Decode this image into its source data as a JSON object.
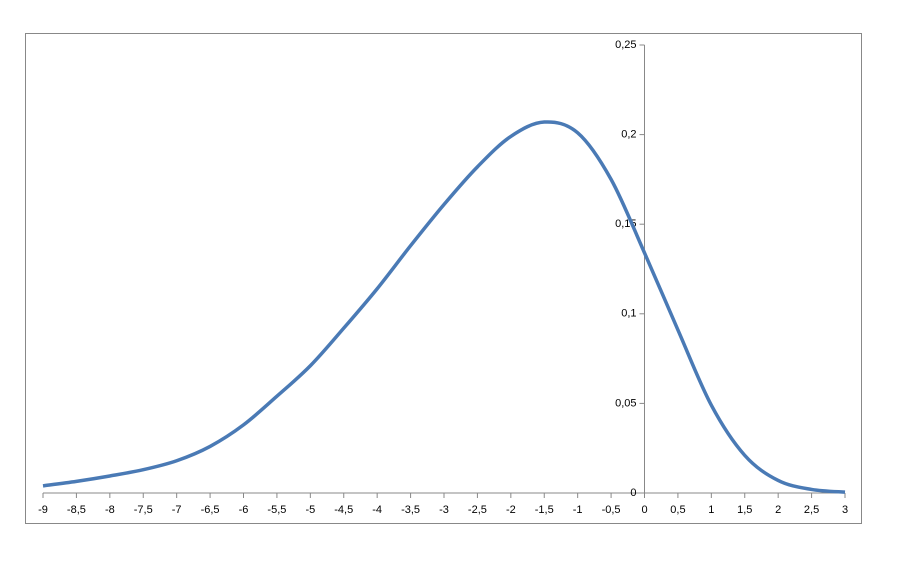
{
  "chart_data": {
    "type": "line",
    "x": [
      -9,
      -8.5,
      -8,
      -7.5,
      -7,
      -6.5,
      -6,
      -5.5,
      -5,
      -4.5,
      -4,
      -3.5,
      -3,
      -2.5,
      -2,
      -1.5,
      -1,
      -0.5,
      0,
      0.5,
      1,
      1.5,
      2,
      2.5,
      3
    ],
    "series": [
      {
        "color": "#4a7ab5",
        "values": [
          0.004,
          0.0065,
          0.0095,
          0.013,
          0.018,
          0.026,
          0.038,
          0.054,
          0.071,
          0.092,
          0.114,
          0.138,
          0.161,
          0.182,
          0.199,
          0.207,
          0.201,
          0.175,
          0.134,
          0.091,
          0.049,
          0.021,
          0.007,
          0.002,
          0.0005
        ]
      }
    ],
    "xlim": [
      -9,
      3
    ],
    "xticks": [
      -9,
      {
        "value": -8.5,
        "label": "-8,5"
      },
      -8,
      {
        "value": -7.5,
        "label": "-7,5"
      },
      -7,
      {
        "value": -6.5,
        "label": "-6,5"
      },
      -6,
      {
        "value": -5.5,
        "label": "-5,5"
      },
      -5,
      {
        "value": -4.5,
        "label": "-4,5"
      },
      -4,
      {
        "value": -3.5,
        "label": "-3,5"
      },
      -3,
      {
        "value": -2.5,
        "label": "-2,5"
      },
      -2,
      {
        "value": -1.5,
        "label": "-1,5"
      },
      -1,
      {
        "value": -0.5,
        "label": "-0,5"
      },
      0,
      {
        "value": 0.5,
        "label": "0,5"
      },
      1,
      {
        "value": 1.5,
        "label": "1,5"
      },
      2,
      {
        "value": 2.5,
        "label": "2,5"
      },
      3
    ],
    "ylim": [
      0,
      0.25
    ],
    "yticks": [
      0,
      {
        "value": 0.05,
        "label": "0,05"
      },
      {
        "value": 0.1,
        "label": "0,1"
      },
      {
        "value": 0.15,
        "label": "0,15"
      },
      {
        "value": 0.2,
        "label": "0,2"
      },
      {
        "value": 0.25,
        "label": "0,25"
      }
    ],
    "grid": false
  }
}
